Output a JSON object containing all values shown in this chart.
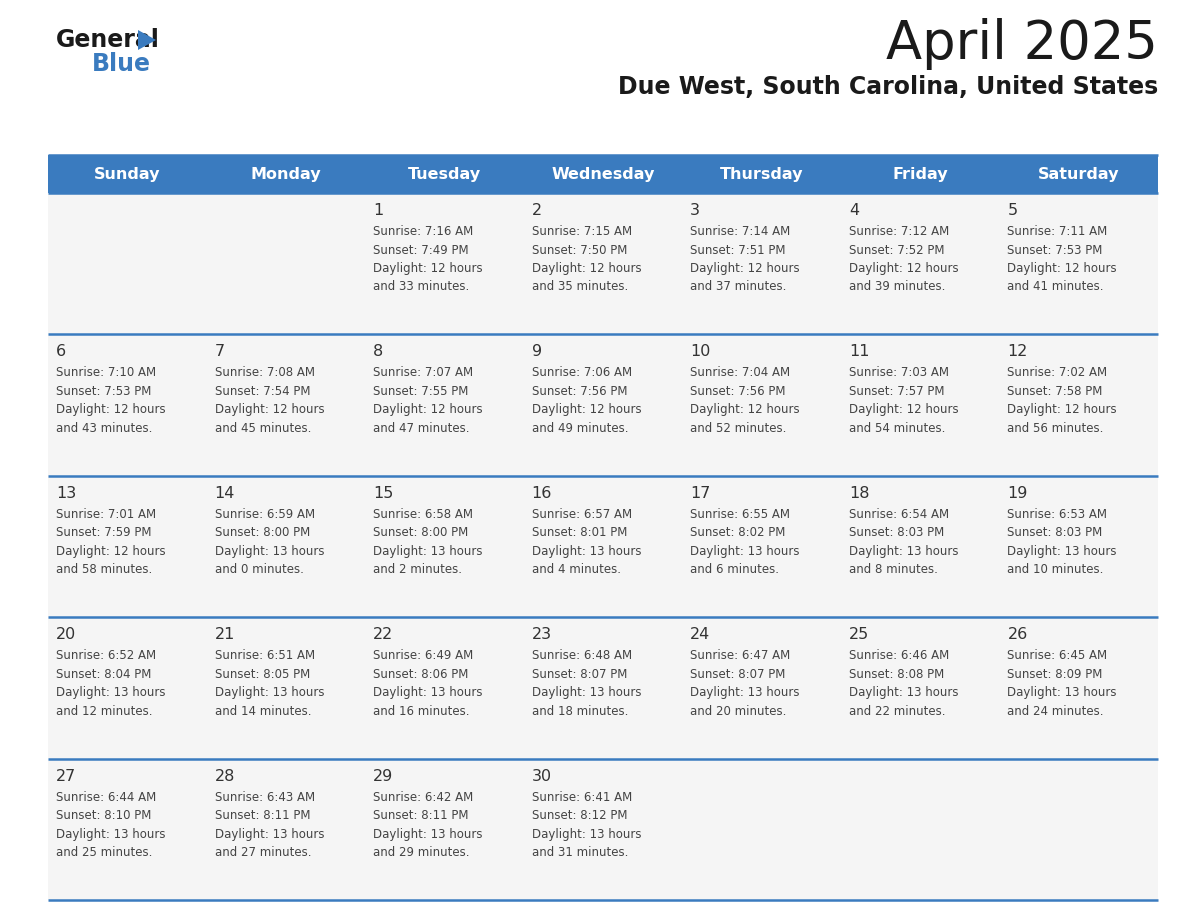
{
  "title": "April 2025",
  "subtitle": "Due West, South Carolina, United States",
  "header_bg": "#3a7bbf",
  "header_text_color": "#ffffff",
  "row_bg": "#f5f5f5",
  "day_text_color": "#333333",
  "cell_text_color": "#444444",
  "border_color": "#3a7bbf",
  "row_separator_color": "#3a7bbf",
  "days_of_week": [
    "Sunday",
    "Monday",
    "Tuesday",
    "Wednesday",
    "Thursday",
    "Friday",
    "Saturday"
  ],
  "weeks": [
    [
      {
        "day": "",
        "info": ""
      },
      {
        "day": "",
        "info": ""
      },
      {
        "day": "1",
        "info": "Sunrise: 7:16 AM\nSunset: 7:49 PM\nDaylight: 12 hours\nand 33 minutes."
      },
      {
        "day": "2",
        "info": "Sunrise: 7:15 AM\nSunset: 7:50 PM\nDaylight: 12 hours\nand 35 minutes."
      },
      {
        "day": "3",
        "info": "Sunrise: 7:14 AM\nSunset: 7:51 PM\nDaylight: 12 hours\nand 37 minutes."
      },
      {
        "day": "4",
        "info": "Sunrise: 7:12 AM\nSunset: 7:52 PM\nDaylight: 12 hours\nand 39 minutes."
      },
      {
        "day": "5",
        "info": "Sunrise: 7:11 AM\nSunset: 7:53 PM\nDaylight: 12 hours\nand 41 minutes."
      }
    ],
    [
      {
        "day": "6",
        "info": "Sunrise: 7:10 AM\nSunset: 7:53 PM\nDaylight: 12 hours\nand 43 minutes."
      },
      {
        "day": "7",
        "info": "Sunrise: 7:08 AM\nSunset: 7:54 PM\nDaylight: 12 hours\nand 45 minutes."
      },
      {
        "day": "8",
        "info": "Sunrise: 7:07 AM\nSunset: 7:55 PM\nDaylight: 12 hours\nand 47 minutes."
      },
      {
        "day": "9",
        "info": "Sunrise: 7:06 AM\nSunset: 7:56 PM\nDaylight: 12 hours\nand 49 minutes."
      },
      {
        "day": "10",
        "info": "Sunrise: 7:04 AM\nSunset: 7:56 PM\nDaylight: 12 hours\nand 52 minutes."
      },
      {
        "day": "11",
        "info": "Sunrise: 7:03 AM\nSunset: 7:57 PM\nDaylight: 12 hours\nand 54 minutes."
      },
      {
        "day": "12",
        "info": "Sunrise: 7:02 AM\nSunset: 7:58 PM\nDaylight: 12 hours\nand 56 minutes."
      }
    ],
    [
      {
        "day": "13",
        "info": "Sunrise: 7:01 AM\nSunset: 7:59 PM\nDaylight: 12 hours\nand 58 minutes."
      },
      {
        "day": "14",
        "info": "Sunrise: 6:59 AM\nSunset: 8:00 PM\nDaylight: 13 hours\nand 0 minutes."
      },
      {
        "day": "15",
        "info": "Sunrise: 6:58 AM\nSunset: 8:00 PM\nDaylight: 13 hours\nand 2 minutes."
      },
      {
        "day": "16",
        "info": "Sunrise: 6:57 AM\nSunset: 8:01 PM\nDaylight: 13 hours\nand 4 minutes."
      },
      {
        "day": "17",
        "info": "Sunrise: 6:55 AM\nSunset: 8:02 PM\nDaylight: 13 hours\nand 6 minutes."
      },
      {
        "day": "18",
        "info": "Sunrise: 6:54 AM\nSunset: 8:03 PM\nDaylight: 13 hours\nand 8 minutes."
      },
      {
        "day": "19",
        "info": "Sunrise: 6:53 AM\nSunset: 8:03 PM\nDaylight: 13 hours\nand 10 minutes."
      }
    ],
    [
      {
        "day": "20",
        "info": "Sunrise: 6:52 AM\nSunset: 8:04 PM\nDaylight: 13 hours\nand 12 minutes."
      },
      {
        "day": "21",
        "info": "Sunrise: 6:51 AM\nSunset: 8:05 PM\nDaylight: 13 hours\nand 14 minutes."
      },
      {
        "day": "22",
        "info": "Sunrise: 6:49 AM\nSunset: 8:06 PM\nDaylight: 13 hours\nand 16 minutes."
      },
      {
        "day": "23",
        "info": "Sunrise: 6:48 AM\nSunset: 8:07 PM\nDaylight: 13 hours\nand 18 minutes."
      },
      {
        "day": "24",
        "info": "Sunrise: 6:47 AM\nSunset: 8:07 PM\nDaylight: 13 hours\nand 20 minutes."
      },
      {
        "day": "25",
        "info": "Sunrise: 6:46 AM\nSunset: 8:08 PM\nDaylight: 13 hours\nand 22 minutes."
      },
      {
        "day": "26",
        "info": "Sunrise: 6:45 AM\nSunset: 8:09 PM\nDaylight: 13 hours\nand 24 minutes."
      }
    ],
    [
      {
        "day": "27",
        "info": "Sunrise: 6:44 AM\nSunset: 8:10 PM\nDaylight: 13 hours\nand 25 minutes."
      },
      {
        "day": "28",
        "info": "Sunrise: 6:43 AM\nSunset: 8:11 PM\nDaylight: 13 hours\nand 27 minutes."
      },
      {
        "day": "29",
        "info": "Sunrise: 6:42 AM\nSunset: 8:11 PM\nDaylight: 13 hours\nand 29 minutes."
      },
      {
        "day": "30",
        "info": "Sunrise: 6:41 AM\nSunset: 8:12 PM\nDaylight: 13 hours\nand 31 minutes."
      },
      {
        "day": "",
        "info": ""
      },
      {
        "day": "",
        "info": ""
      },
      {
        "day": "",
        "info": ""
      }
    ]
  ]
}
